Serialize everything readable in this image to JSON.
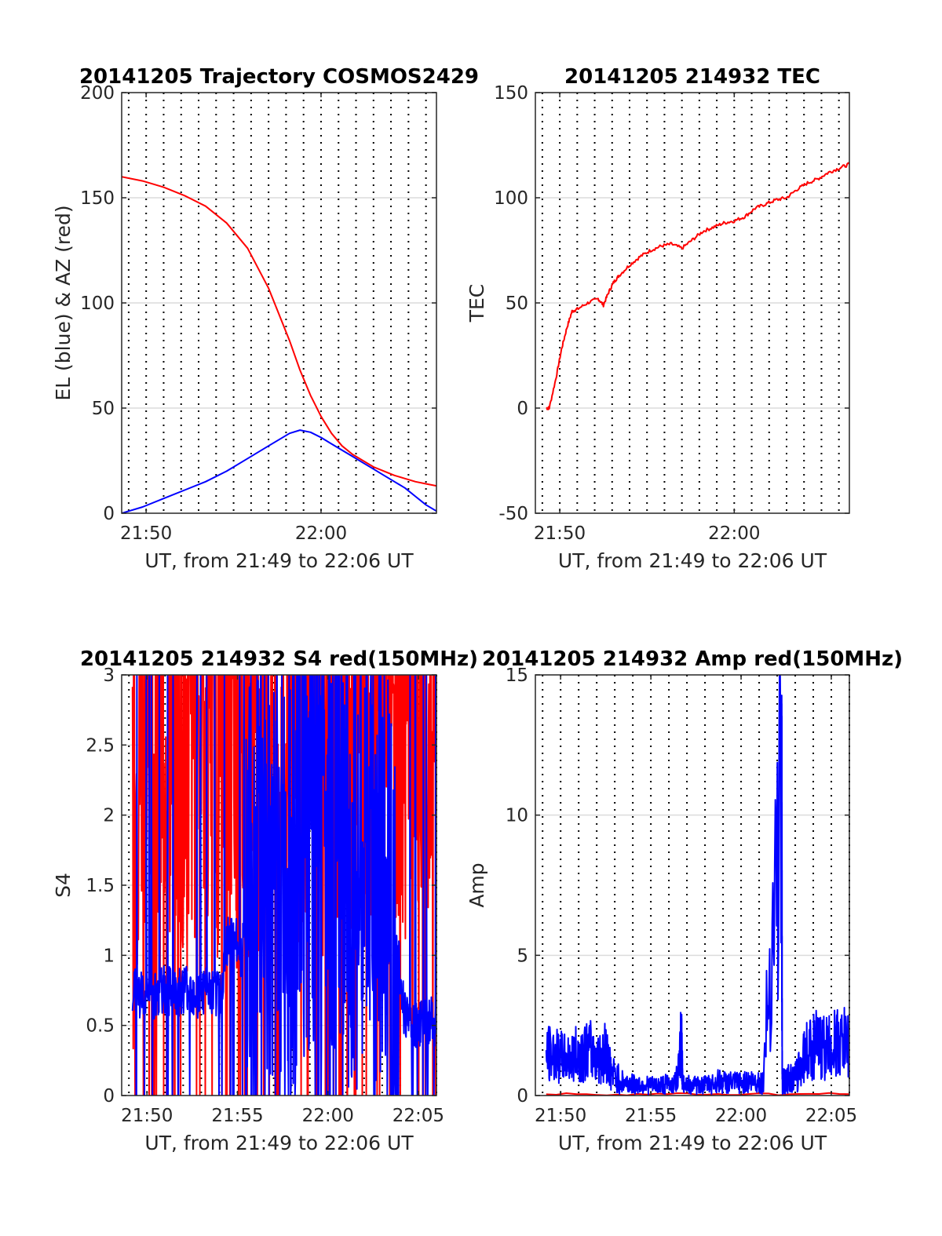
{
  "chart_data": [
    {
      "type": "line",
      "title": "20141205 Trajectory COSMOS2429",
      "xlabel": "UT, from 21:49 to 22:06 UT",
      "ylabel": "EL (blue) & AZ (red)",
      "xlim": [
        21.81,
        22.11
      ],
      "ylim": [
        0,
        200
      ],
      "x_ticks": [
        {
          "value": 21.8333,
          "label": "21:50"
        },
        {
          "value": 22.0,
          "label": "22:00"
        }
      ],
      "y_ticks": [
        0,
        50,
        100,
        150,
        200
      ],
      "grid": "dotted vertical lines every minute, solid horizontal gridlines",
      "series": [
        {
          "color": "#ff0000",
          "x": [
            21.81,
            21.83,
            21.85,
            21.87,
            21.89,
            21.91,
            21.93,
            21.95,
            21.97,
            21.98,
            21.99,
            22.0,
            22.01,
            22.02,
            22.03,
            22.04,
            22.05,
            22.06,
            22.07,
            22.08,
            22.09,
            22.1,
            22.11
          ],
          "values": [
            160,
            158,
            155,
            151,
            146,
            138,
            126,
            107,
            82,
            68,
            56,
            46,
            38,
            32,
            28,
            25,
            22,
            20,
            18,
            16.5,
            15,
            14,
            13
          ]
        },
        {
          "color": "#0000ff",
          "x": [
            21.81,
            21.83,
            21.85,
            21.87,
            21.89,
            21.91,
            21.93,
            21.95,
            21.97,
            21.98,
            21.99,
            22.0,
            22.01,
            22.02,
            22.03,
            22.04,
            22.05,
            22.06,
            22.07,
            22.08,
            22.09,
            22.1,
            22.11
          ],
          "values": [
            0,
            3,
            7,
            11,
            15,
            20,
            26,
            32,
            38,
            39.5,
            38.5,
            36,
            33,
            30,
            27,
            24,
            21,
            18,
            15,
            12,
            8,
            4,
            1
          ]
        }
      ]
    },
    {
      "type": "line",
      "title": "20141205 214932 TEC",
      "xlabel": "UT, from 21:49 to 22:06 UT",
      "ylabel": "TEC",
      "xlim": [
        21.81,
        22.11
      ],
      "ylim": [
        -50,
        150
      ],
      "x_ticks": [
        {
          "value": 21.8333,
          "label": "21:50"
        },
        {
          "value": 22.0,
          "label": "22:00"
        }
      ],
      "y_ticks": [
        -50,
        0,
        50,
        100,
        150
      ],
      "grid": "dotted vertical lines every minute, solid horizontal gridlines",
      "series": [
        {
          "color": "#ff0000",
          "x": [
            21.8206,
            21.8233,
            21.83,
            21.835,
            21.84,
            21.845,
            21.85,
            21.86,
            21.87,
            21.875,
            21.88,
            21.885,
            21.89,
            21.9,
            21.91,
            21.92,
            21.93,
            21.94,
            21.95,
            21.96,
            21.97,
            21.98,
            21.99,
            22.0,
            22.01,
            22.02,
            22.03,
            22.04,
            22.05,
            22.06,
            22.07,
            22.08,
            22.09,
            22.1,
            22.11
          ],
          "values": [
            0,
            0,
            15,
            28,
            38,
            46,
            47,
            50,
            52,
            49,
            55,
            60,
            63,
            68,
            72,
            75,
            77,
            78,
            76,
            80,
            84,
            86,
            88,
            89,
            91,
            95,
            97,
            99,
            100,
            104,
            107,
            109,
            112,
            114,
            116
          ]
        }
      ]
    },
    {
      "type": "line",
      "title": "20141205 214932 S4 red(150MHz)",
      "xlabel": "UT, from 21:49 to 22:06 UT",
      "ylabel": "S4",
      "xlim": [
        21.81,
        22.1
      ],
      "ylim": [
        0,
        3
      ],
      "x_ticks": [
        {
          "value": 21.8333,
          "label": "21:50"
        },
        {
          "value": 21.9167,
          "label": "21:55"
        },
        {
          "value": 22.0,
          "label": "22:00"
        },
        {
          "value": 22.0833,
          "label": "22:05"
        }
      ],
      "y_ticks": [
        0,
        0.5,
        1,
        1.5,
        2,
        2.5,
        3
      ],
      "grid": "dotted vertical lines every minute, solid horizontal gridlines",
      "series": [
        {
          "color": "#ff0000",
          "x": [
            21.82,
            21.83,
            21.84,
            21.85,
            21.86,
            21.87,
            21.88,
            21.89,
            21.9,
            21.91,
            21.92,
            21.93,
            21.94,
            21.95,
            21.96,
            21.97,
            21.98,
            21.99,
            22.0,
            22.01,
            22.02,
            22.03,
            22.04,
            22.05,
            22.06,
            22.07,
            22.08,
            22.09,
            22.1
          ],
          "values": [
            1.8,
            2.9,
            2.2,
            2.6,
            2.5,
            2.4,
            2.7,
            2.8,
            2.5,
            2.6,
            2.4,
            2.2,
            2.8,
            2.6,
            2.3,
            2.5,
            2.9,
            2.4,
            2.6,
            2.7,
            2.5,
            2.8,
            2.7,
            2.6,
            2.9,
            2.6,
            2.4,
            2.8,
            2.2
          ]
        },
        {
          "color": "#0000ff",
          "x": [
            21.82,
            21.83,
            21.84,
            21.85,
            21.86,
            21.87,
            21.88,
            21.89,
            21.9,
            21.91,
            21.92,
            21.93,
            21.94,
            21.95,
            21.96,
            21.97,
            21.98,
            21.99,
            22.0,
            22.01,
            22.02,
            22.03,
            22.04,
            22.05,
            22.06,
            22.07,
            22.08,
            22.09,
            22.1
          ],
          "values": [
            0.75,
            0.7,
            0.72,
            0.75,
            0.73,
            0.78,
            0.72,
            0.75,
            0.7,
            1.2,
            1.0,
            1.5,
            1.6,
            1.5,
            1.7,
            1.5,
            1.8,
            1.7,
            1.9,
            1.8,
            1.6,
            1.6,
            1.7,
            1.5,
            1.5,
            0.6,
            0.5,
            0.55,
            0.5
          ]
        }
      ]
    },
    {
      "type": "line",
      "title": "20141205 214932 Amp red(150MHz)",
      "xlabel": "UT, from 21:49 to 22:06 UT",
      "ylabel": "Amp",
      "xlim": [
        21.81,
        22.1
      ],
      "ylim": [
        0,
        15
      ],
      "x_ticks": [
        {
          "value": 21.8333,
          "label": "21:50"
        },
        {
          "value": 21.9167,
          "label": "21:55"
        },
        {
          "value": 22.0,
          "label": "22:00"
        },
        {
          "value": 22.0833,
          "label": "22:05"
        }
      ],
      "y_ticks": [
        0,
        5,
        10,
        15
      ],
      "grid": "dotted vertical lines every minute, solid horizontal gridlines",
      "series": [
        {
          "color": "#ff0000",
          "x": [
            21.82,
            22.1
          ],
          "values": [
            0.05,
            0.05
          ]
        },
        {
          "color": "#0000ff",
          "x": [
            21.82,
            21.83,
            21.84,
            21.85,
            21.86,
            21.87,
            21.875,
            21.88,
            21.89,
            21.9,
            21.91,
            21.92,
            21.93,
            21.94,
            21.945,
            21.946,
            21.95,
            21.96,
            21.97,
            21.98,
            21.99,
            22.0,
            22.01,
            22.02,
            22.0375,
            22.038,
            22.04,
            22.05,
            22.06,
            22.07,
            22.08,
            22.09,
            22.1
          ],
          "values": [
            1.5,
            1.4,
            1.3,
            1.5,
            1.6,
            1.3,
            1.6,
            0.8,
            0.5,
            0.4,
            0.4,
            0.35,
            0.4,
            0.45,
            2.0,
            0.4,
            0.4,
            0.35,
            0.4,
            0.5,
            0.45,
            0.45,
            0.5,
            0.5,
            11.2,
            0.5,
            0.6,
            0.6,
            1.6,
            1.8,
            1.7,
            1.9,
            1.8
          ]
        }
      ]
    }
  ]
}
